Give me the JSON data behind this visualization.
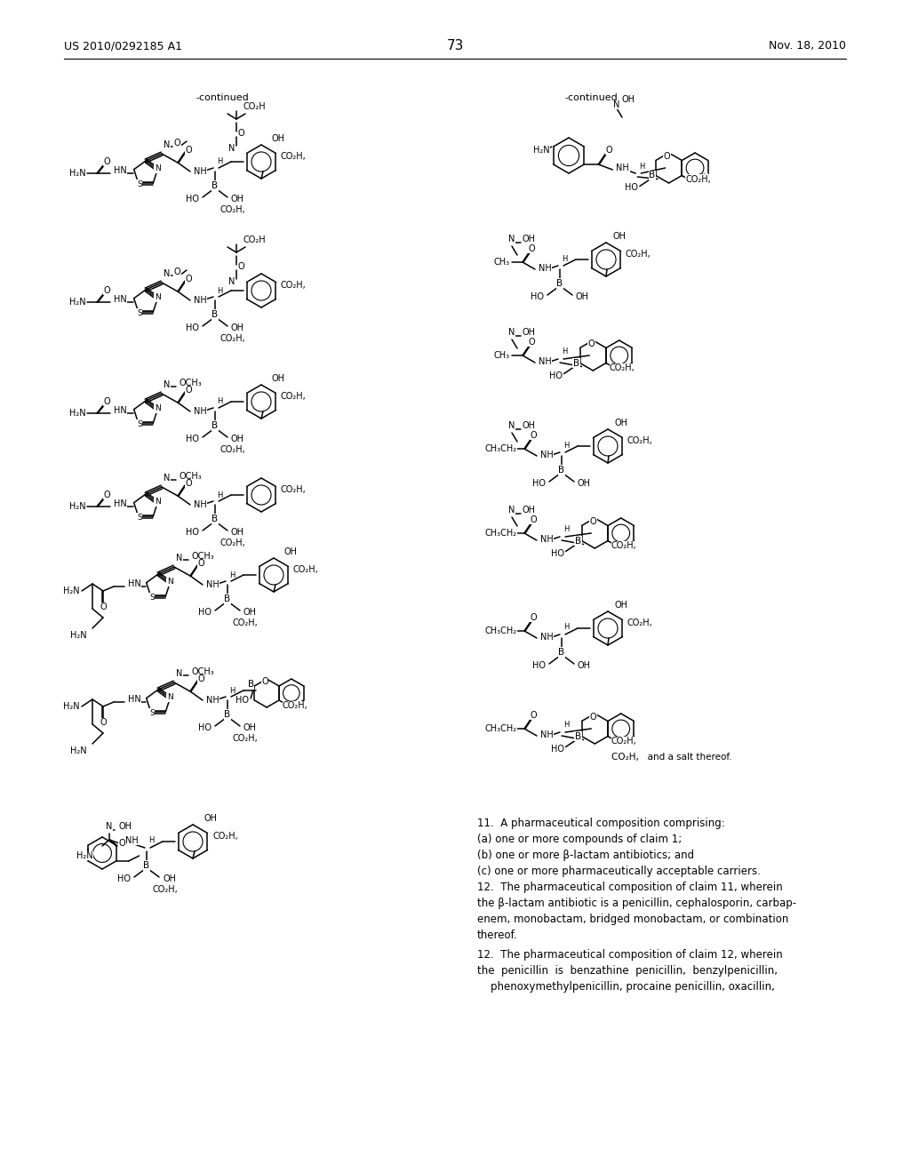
{
  "bg": "#ffffff",
  "header_left": "US 2010/0292185 A1",
  "header_right": "Nov. 18, 2010",
  "page_num": "73",
  "claim11": "11.  A pharmaceutical composition comprising:\n(a) one or more compounds of claim 1;\n(b) one or more β-lactam antibiotics; and\n(c) one or more pharmaceutically acceptable carriers.",
  "claim12a": "12.  The pharmaceutical composition of claim 11, wherein\nthe β-lactam antibiotic is a penicillin, cephalosporin, carbap-\nenem, monobactam, bridged monobactam, or combination\nthereof.",
  "claim12b": "12.  The pharmaceutical composition of claim 12, wherein\nthe  penicillin  is  benzathine  penicillin,  benzylpenicillin,\n    phenoxymethylpenicillin, procaine penicillin, oxacillin,",
  "salt_label": "CO₂H,   and a salt thereof."
}
